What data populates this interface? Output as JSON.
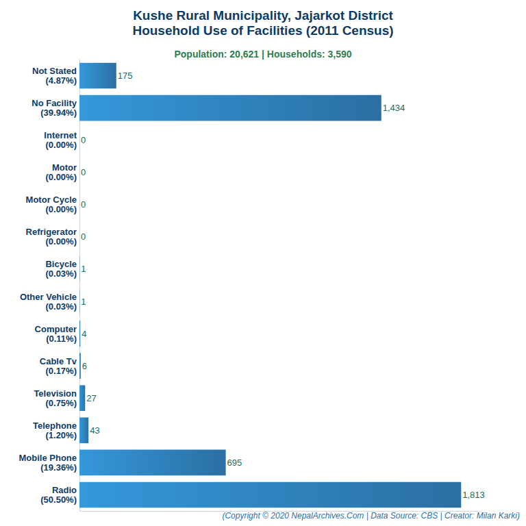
{
  "chart_data": {
    "type": "bar",
    "title": "Kushe Rural Municipality, Jajarkot District\nHousehold Use of Facilities (2011 Census)",
    "subtitle": "Population: 20,621 | Households: 3,590",
    "caption": "(Copyright © 2020 NepalArchives.Com | Data Source: CBS | Creator: Milan Karki)",
    "categories": [
      "Not Stated\n(4.87%)",
      "No Facility\n(39.94%)",
      "Internet\n(0.00%)",
      "Motor\n(0.00%)",
      "Motor Cycle\n(0.00%)",
      "Refrigerator\n(0.00%)",
      "Bicycle\n(0.03%)",
      "Other Vehicle\n(0.03%)",
      "Computer\n(0.11%)",
      "Cable Tv\n(0.17%)",
      "Television\n(0.75%)",
      "Telephone\n(1.20%)",
      "Mobile Phone\n(19.36%)",
      "Radio\n(50.50%)"
    ],
    "values": [
      175,
      1434,
      0,
      0,
      0,
      0,
      1,
      1,
      4,
      6,
      27,
      43,
      695,
      1813
    ],
    "value_labels": [
      "175",
      "1,434",
      "0",
      "0",
      "0",
      "0",
      "1",
      "1",
      "4",
      "6",
      "27",
      "43",
      "695",
      "1,813"
    ],
    "color": "#3498db",
    "orientation": "horizontal",
    "data_labels": true,
    "tick_labels": "y",
    "grid": false,
    "xlim": [
      0,
      1900
    ]
  }
}
